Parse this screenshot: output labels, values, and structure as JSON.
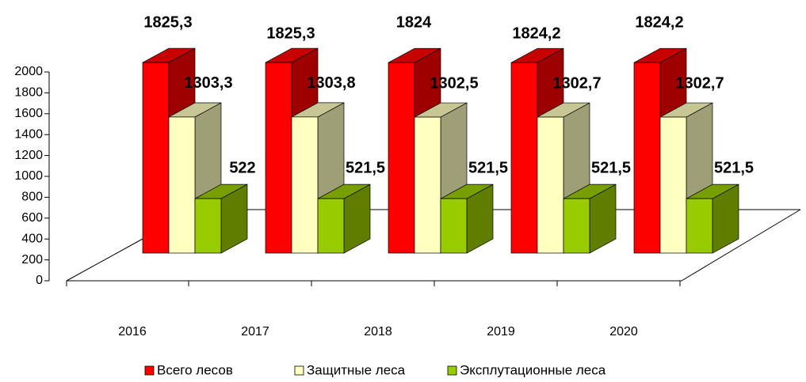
{
  "chart_data": {
    "type": "bar3d",
    "categories": [
      "2016",
      "2017",
      "2018",
      "2019",
      "2020"
    ],
    "series": [
      {
        "name": "Всего лесов",
        "color": "#ff0000",
        "values": [
          1825.3,
          1825.3,
          1824,
          1824.2,
          1824.2
        ],
        "value_labels": [
          "1825,3",
          "1825,3",
          "1824",
          "1824,2",
          "1824,2"
        ]
      },
      {
        "name": "Защитные леса",
        "color": "#ffffc0",
        "values": [
          1303.3,
          1303.8,
          1302.5,
          1302.7,
          1302.7
        ],
        "value_labels": [
          "1303,3",
          "1303,8",
          "1302,5",
          "1302,7",
          "1302,7"
        ]
      },
      {
        "name": "Эксплутационные леса",
        "color": "#99cc00",
        "values": [
          522,
          521.5,
          521.5,
          521.5,
          521.5
        ],
        "value_labels": [
          "522",
          "521,5",
          "521,5",
          "521,5",
          "521,5"
        ]
      }
    ],
    "ylim": [
      0,
      2000
    ],
    "yticks": [
      0,
      200,
      400,
      600,
      800,
      1000,
      1200,
      1400,
      1600,
      1800,
      2000
    ]
  }
}
